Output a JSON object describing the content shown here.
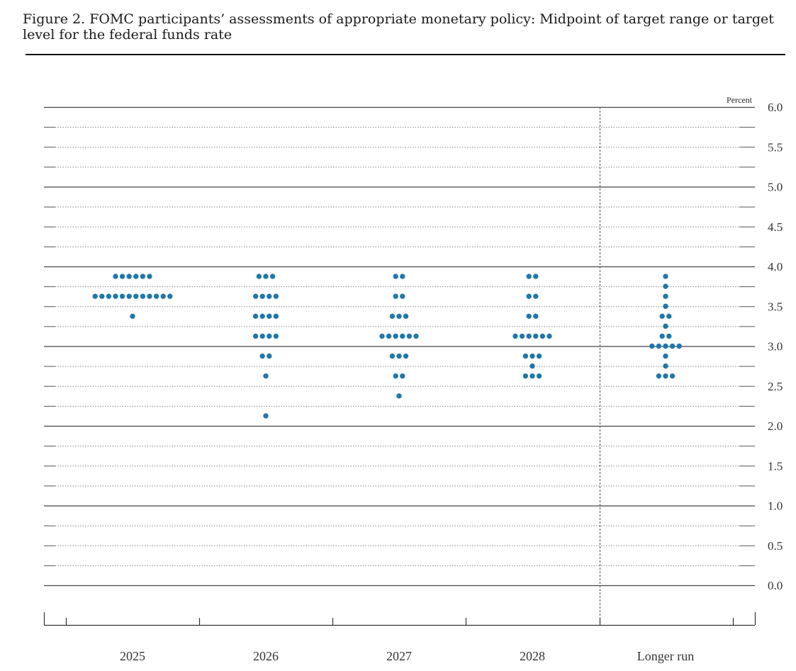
{
  "figure": {
    "title": "Figure 2. FOMC participants’ assessments of appropriate monetary policy: Midpoint of target range or target level for the federal funds rate"
  },
  "chart_data": {
    "type": "scatter",
    "title": "Figure 2. FOMC participants’ assessments of appropriate monetary policy: Midpoint of target range or target level for the federal funds rate",
    "unit_label": "Percent",
    "xlabel": "",
    "ylabel": "",
    "categories": [
      "2025",
      "2026",
      "2027",
      "2028",
      "Longer run"
    ],
    "ylim": [
      0,
      6
    ],
    "y_ticks": [
      "6.0",
      "5.5",
      "5.0",
      "4.5",
      "4.0",
      "3.5",
      "3.0",
      "2.5",
      "2.0",
      "1.5",
      "1.0",
      "0.5",
      "0.0"
    ],
    "y_tick_values": [
      6.0,
      5.5,
      5.0,
      4.5,
      4.0,
      3.5,
      3.0,
      2.5,
      2.0,
      1.5,
      1.0,
      0.5,
      0.0
    ],
    "gridlines": "solid at whole percents, dotted at each 0.25",
    "divider_before": "Longer run",
    "dot_color": "#1f78a8",
    "dots": [
      {
        "category": "2025",
        "rates": [
          {
            "rate": 3.875,
            "count": 6
          },
          {
            "rate": 3.625,
            "count": 12
          },
          {
            "rate": 3.375,
            "count": 1
          }
        ]
      },
      {
        "category": "2026",
        "rates": [
          {
            "rate": 3.875,
            "count": 3
          },
          {
            "rate": 3.625,
            "count": 4
          },
          {
            "rate": 3.375,
            "count": 4
          },
          {
            "rate": 3.125,
            "count": 4
          },
          {
            "rate": 2.875,
            "count": 2
          },
          {
            "rate": 2.625,
            "count": 1
          },
          {
            "rate": 2.125,
            "count": 1
          }
        ]
      },
      {
        "category": "2027",
        "rates": [
          {
            "rate": 3.875,
            "count": 2
          },
          {
            "rate": 3.625,
            "count": 2
          },
          {
            "rate": 3.375,
            "count": 3
          },
          {
            "rate": 3.125,
            "count": 6
          },
          {
            "rate": 2.875,
            "count": 3
          },
          {
            "rate": 2.625,
            "count": 2
          },
          {
            "rate": 2.375,
            "count": 1
          }
        ]
      },
      {
        "category": "2028",
        "rates": [
          {
            "rate": 3.875,
            "count": 2
          },
          {
            "rate": 3.625,
            "count": 2
          },
          {
            "rate": 3.375,
            "count": 2
          },
          {
            "rate": 3.125,
            "count": 6
          },
          {
            "rate": 2.875,
            "count": 3
          },
          {
            "rate": 2.75,
            "count": 1
          },
          {
            "rate": 2.625,
            "count": 3
          }
        ]
      },
      {
        "category": "Longer run",
        "rates": [
          {
            "rate": 3.875,
            "count": 1
          },
          {
            "rate": 3.75,
            "count": 1
          },
          {
            "rate": 3.625,
            "count": 1
          },
          {
            "rate": 3.5,
            "count": 1
          },
          {
            "rate": 3.375,
            "count": 2
          },
          {
            "rate": 3.25,
            "count": 1
          },
          {
            "rate": 3.125,
            "count": 2
          },
          {
            "rate": 3.0,
            "count": 5
          },
          {
            "rate": 2.875,
            "count": 1
          },
          {
            "rate": 2.75,
            "count": 1
          },
          {
            "rate": 2.625,
            "count": 3
          }
        ]
      }
    ]
  }
}
